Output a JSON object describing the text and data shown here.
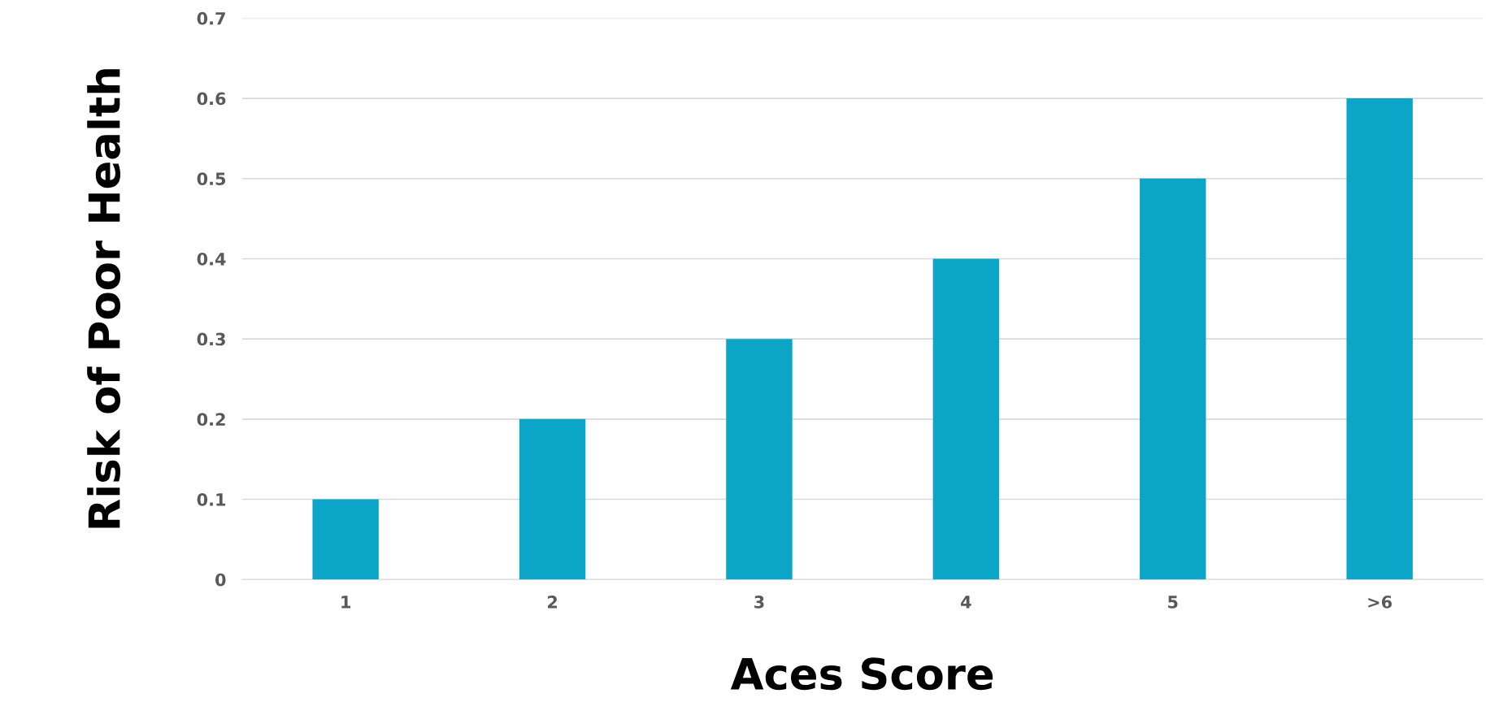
{
  "chart_data": {
    "type": "bar",
    "xlabel": "Aces Score",
    "ylabel": "Risk of Poor Health",
    "categories": [
      "1",
      "2",
      "3",
      "4",
      "5",
      ">6"
    ],
    "values": [
      0.1,
      0.2,
      0.3,
      0.4,
      0.5,
      0.6
    ],
    "color": "#0ba5c7",
    "ylim": [
      0,
      0.7
    ],
    "yticks": [
      0,
      0.1,
      0.2,
      0.3,
      0.4,
      0.5,
      0.6,
      0.7
    ],
    "grid": "y"
  }
}
